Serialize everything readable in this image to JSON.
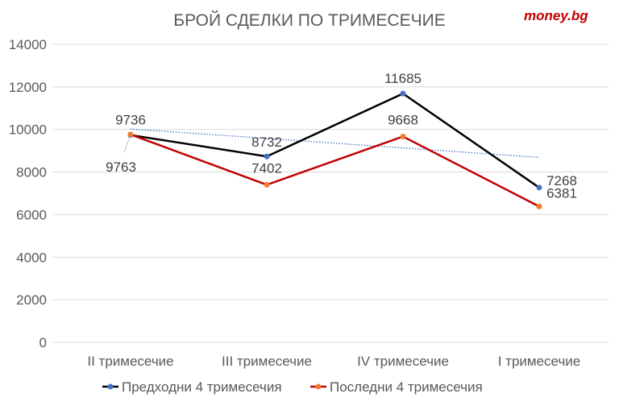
{
  "brand": "money.bg",
  "chart_data": {
    "type": "line",
    "title": "БРОЙ СДЕЛКИ ПО ТРИМЕСЕЧИЕ",
    "categories": [
      "II тримесечие",
      "III тримесечие",
      "IV тримесечие",
      "I тримесечие"
    ],
    "series": [
      {
        "name": "Предходни 4 тримесечия",
        "values": [
          9736,
          8732,
          11685,
          7268
        ],
        "line_color": "#000000",
        "marker_color": "#4472c4"
      },
      {
        "name": "Последни 4 тримесечия",
        "values": [
          9763,
          7402,
          9668,
          6381
        ],
        "line_color": "#c00000",
        "marker_color": "#ed7d31"
      }
    ],
    "trendline": {
      "series": "Предходни 4 тримесечия",
      "type": "linear",
      "color": "#4472c4",
      "style": "dotted"
    },
    "ylim": [
      0,
      14000
    ],
    "yticks": [
      0,
      2000,
      4000,
      6000,
      8000,
      10000,
      12000,
      14000
    ],
    "grid": true,
    "legend": "bottom",
    "xlabel": "",
    "ylabel": ""
  }
}
